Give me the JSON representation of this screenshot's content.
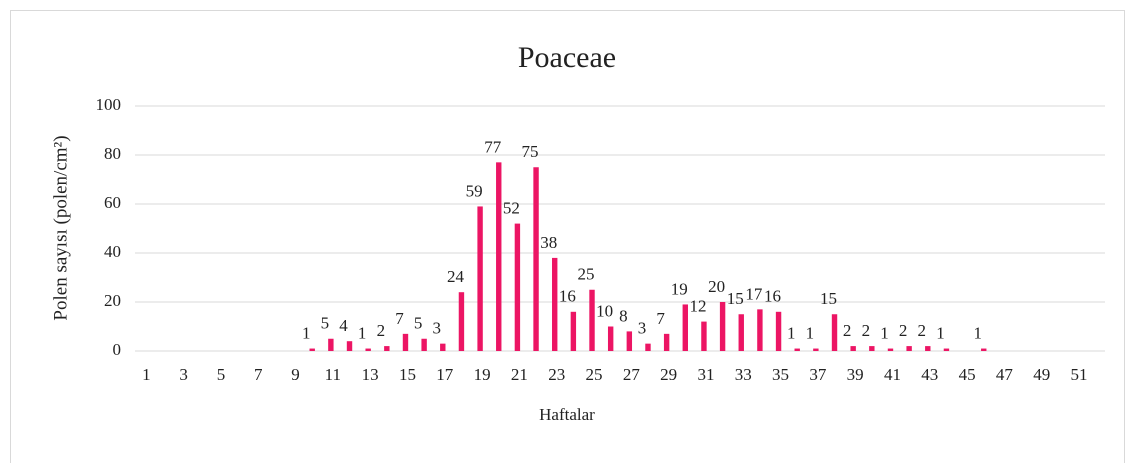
{
  "chart_data": {
    "type": "bar",
    "title": "Poaceae",
    "x_label": "Haftalar",
    "y_label": "Polen sayısı (polen/cm²)",
    "categories": [
      1,
      null,
      3,
      null,
      5,
      null,
      7,
      null,
      9,
      null,
      11,
      null,
      13,
      null,
      15,
      null,
      17,
      null,
      19,
      null,
      21,
      null,
      23,
      null,
      25,
      null,
      27,
      null,
      29,
      null,
      31,
      null,
      33,
      null,
      35,
      null,
      37,
      null,
      39,
      null,
      41,
      null,
      43,
      null,
      45,
      null,
      47,
      null,
      49,
      null,
      51,
      null
    ],
    "values": [
      0,
      0,
      0,
      0,
      0,
      0,
      0,
      0,
      0,
      1,
      5,
      4,
      1,
      2,
      7,
      5,
      3,
      24,
      59,
      77,
      52,
      75,
      38,
      16,
      25,
      10,
      8,
      3,
      7,
      19,
      12,
      20,
      15,
      17,
      16,
      1,
      1,
      15,
      2,
      2,
      1,
      2,
      2,
      1,
      0,
      1,
      0,
      0,
      0,
      0,
      0,
      0
    ],
    "color": "#ec1564",
    "ylim": [
      0,
      100
    ],
    "yticks": [
      0,
      20,
      40,
      60,
      80,
      100
    ],
    "grid": true
  }
}
